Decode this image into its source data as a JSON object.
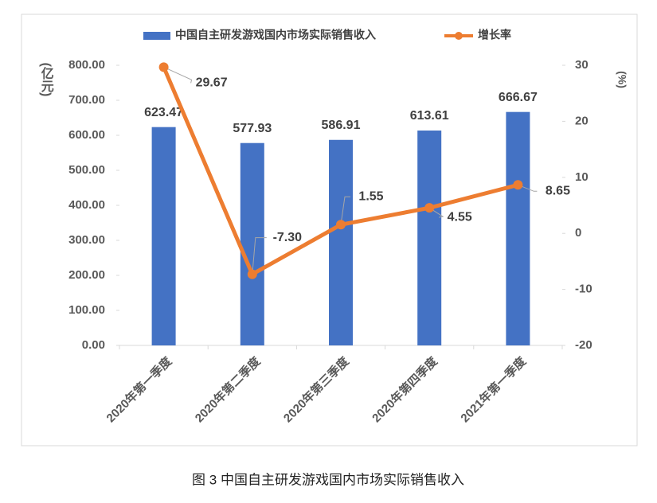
{
  "chart_data": {
    "type": "bar-line",
    "title": "图 3  中国自主研发游戏国内市场实际销售收入",
    "y_label": "(亿元)",
    "y2_label": "(%)",
    "categories": [
      "2020年第一季度",
      "2020年第二季度",
      "2020年第三季度",
      "2020年第四季度",
      "2021年第一季度"
    ],
    "series": [
      {
        "name": "中国自主研发游戏国内市场实际销售收入",
        "type": "bar",
        "color": "#4472c4",
        "values": [
          623.47,
          577.93,
          586.91,
          613.61,
          666.67
        ],
        "value_labels": [
          "623.47",
          "577.93",
          "586.91",
          "613.61",
          "666.67"
        ]
      },
      {
        "name": "增长率",
        "type": "line",
        "axis": "y2",
        "color": "#ed7d31",
        "values": [
          29.67,
          -7.3,
          1.55,
          4.55,
          8.65
        ],
        "value_labels": [
          "29.67",
          "-7.30",
          "1.55",
          "4.55",
          "8.65"
        ]
      }
    ],
    "ylim": [
      0,
      800
    ],
    "yticks": [
      {
        "value": 0,
        "label": "0.00"
      },
      {
        "value": 100,
        "label": "100.00"
      },
      {
        "value": 200,
        "label": "200.00"
      },
      {
        "value": 300,
        "label": "300.00"
      },
      {
        "value": 400,
        "label": "400.00"
      },
      {
        "value": 500,
        "label": "500.00"
      },
      {
        "value": 600,
        "label": "600.00"
      },
      {
        "value": 700,
        "label": "700.00"
      },
      {
        "value": 800,
        "label": "800.00"
      }
    ],
    "y2lim": [
      -20,
      30
    ],
    "y2ticks": [
      -20,
      -10,
      0,
      10,
      20,
      30
    ],
    "legend": "top",
    "grid": false
  }
}
